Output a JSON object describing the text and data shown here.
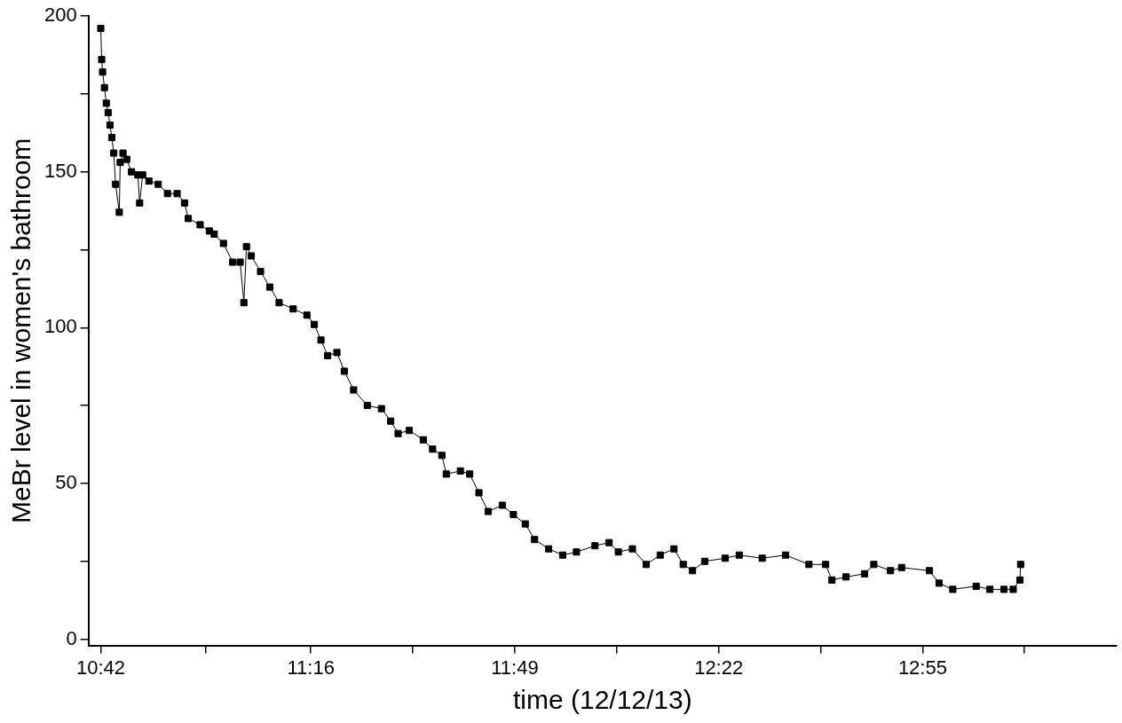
{
  "chart_data": {
    "type": "line",
    "xlabel": "time (12/12/13)",
    "ylabel": "MeBr level in women's bathroom",
    "marker": "square",
    "grid": false,
    "legend": false,
    "xlim": [
      10.667,
      13.44
    ],
    "ylim": [
      -2,
      200
    ],
    "xticks": [
      {
        "value": 10.7,
        "label": "10:42"
      },
      {
        "value": 10.9833,
        "label": null
      },
      {
        "value": 11.2667,
        "label": "11:16"
      },
      {
        "value": 11.5417,
        "label": null
      },
      {
        "value": 11.8167,
        "label": "11:49"
      },
      {
        "value": 12.0917,
        "label": null
      },
      {
        "value": 12.3667,
        "label": "12:22"
      },
      {
        "value": 12.6417,
        "label": null
      },
      {
        "value": 12.9167,
        "label": "12:55"
      },
      {
        "value": 13.19,
        "label": null
      }
    ],
    "yticks": [
      0,
      {
        "value": 25,
        "label": null
      },
      50,
      {
        "value": 75,
        "label": null
      },
      100,
      {
        "value": 125,
        "label": null
      },
      150,
      {
        "value": 175,
        "label": null
      },
      200
    ],
    "series": [
      {
        "color": "#000000",
        "x": [
          10.7,
          10.7025,
          10.705,
          10.71,
          10.715,
          10.72,
          10.725,
          10.73,
          10.735,
          10.74,
          10.75,
          10.7525,
          10.76,
          10.77,
          10.783,
          10.8,
          10.805,
          10.813,
          10.83,
          10.855,
          10.88,
          10.906,
          10.926,
          10.936,
          10.968,
          10.993,
          11.006,
          11.031,
          11.056,
          11.076,
          11.086,
          11.093,
          11.106,
          11.131,
          11.156,
          11.181,
          11.219,
          11.256,
          11.276,
          11.294,
          11.312,
          11.337,
          11.357,
          11.382,
          11.419,
          11.457,
          11.482,
          11.502,
          11.532,
          11.57,
          11.595,
          11.62,
          11.632,
          11.67,
          11.695,
          11.72,
          11.745,
          11.783,
          11.813,
          11.845,
          11.87,
          11.908,
          11.946,
          11.983,
          12.033,
          12.071,
          12.096,
          12.134,
          12.171,
          12.209,
          12.246,
          12.271,
          12.296,
          12.329,
          12.384,
          12.422,
          12.484,
          12.547,
          12.61,
          12.655,
          12.672,
          12.71,
          12.76,
          12.785,
          12.83,
          12.86,
          12.935,
          12.961,
          12.998,
          13.061,
          13.098,
          13.136,
          13.161,
          13.179,
          13.181
        ],
        "values": [
          196,
          186,
          182,
          177,
          172,
          169,
          165,
          161,
          156,
          146,
          137,
          153,
          156,
          154,
          150,
          149,
          140,
          149,
          147,
          146,
          143,
          143,
          140,
          135,
          133,
          131,
          130,
          127,
          121,
          121,
          108,
          126,
          123,
          118,
          113,
          108,
          106,
          104,
          101,
          96,
          91,
          92,
          86,
          80,
          75,
          74,
          70,
          66,
          67,
          64,
          61,
          59,
          53,
          54,
          53,
          47,
          41,
          43,
          40,
          37,
          32,
          29,
          27,
          28,
          30,
          31,
          28,
          29,
          24,
          27,
          29,
          24,
          22,
          25,
          26,
          27,
          26,
          27,
          24,
          24,
          19,
          20,
          21,
          24,
          22,
          23,
          22,
          18,
          16,
          17,
          16,
          16,
          16,
          19,
          24
        ]
      }
    ]
  }
}
